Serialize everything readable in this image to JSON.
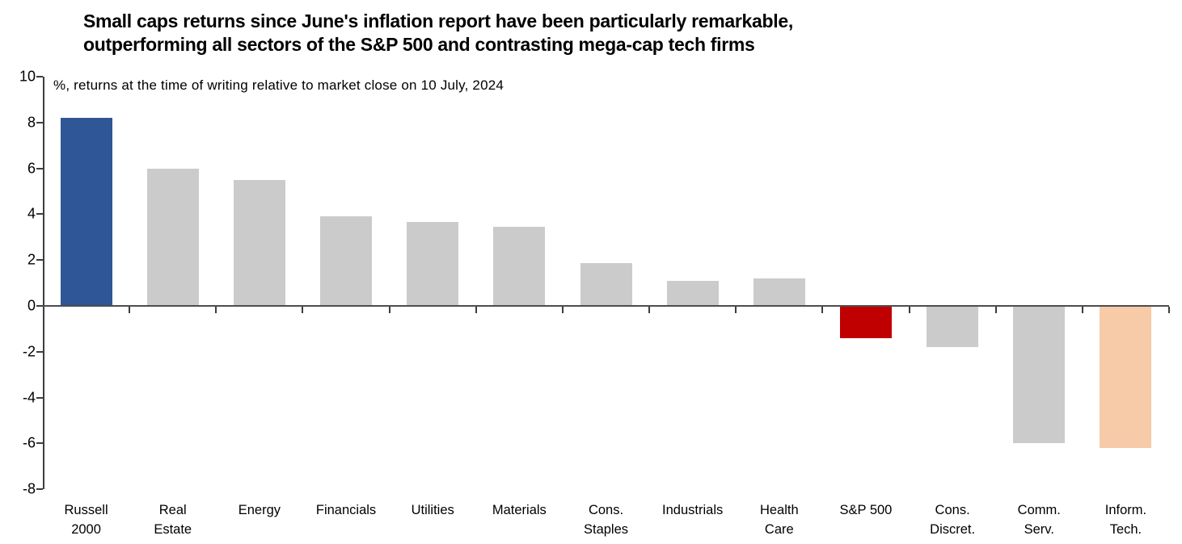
{
  "title": {
    "text": "Small caps returns since June's inflation report have been particularly remarkable,\noutperforming all sectors of the S&P 500 and contrasting mega-cap tech firms"
  },
  "subtitle": "%, returns at the time of writing relative to market close on 10 July, 2024",
  "chart_data": {
    "type": "bar",
    "title": "Small caps returns since June's inflation report have been particularly remarkable, outperforming all sectors of the S&P 500 and contrasting mega-cap tech firms",
    "subtitle": "%, returns at the time of writing relative to market close on 10 July, 2024",
    "categories": [
      "Russell\n2000",
      "Real\nEstate",
      "Energy",
      "Financials",
      "Utilities",
      "Materials",
      "Cons.\nStaples",
      "Industrials",
      "Health\nCare",
      "S&P 500",
      "Cons.\nDiscret.",
      "Comm.\nServ.",
      "Inform.\nTech."
    ],
    "values": [
      8.2,
      6.0,
      5.5,
      3.9,
      3.65,
      3.45,
      1.85,
      1.1,
      1.2,
      -1.4,
      -1.8,
      -6.0,
      -6.2
    ],
    "bar_colors": [
      "#2F5696",
      "#CBCBCB",
      "#CBCBCB",
      "#CBCBCB",
      "#CBCBCB",
      "#CBCBCB",
      "#CBCBCB",
      "#CBCBCB",
      "#CBCBCB",
      "#C00000",
      "#CBCBCB",
      "#CBCBCB",
      "#F7CAA8"
    ],
    "xlabel": "",
    "ylabel": "",
    "ylim": [
      -8,
      10
    ],
    "ytick_step": 2,
    "yticks": [
      -8,
      -6,
      -4,
      -2,
      0,
      2,
      4,
      6,
      8,
      10
    ],
    "grid": false,
    "legend": false,
    "highlight_colors": {
      "russell_2000": "#2F5696",
      "sp_500": "#C00000",
      "inform_tech": "#F7CAA8",
      "default_gray": "#CBCBCB"
    }
  },
  "layout_hints": {
    "axis_color": "#3d3d3d"
  }
}
